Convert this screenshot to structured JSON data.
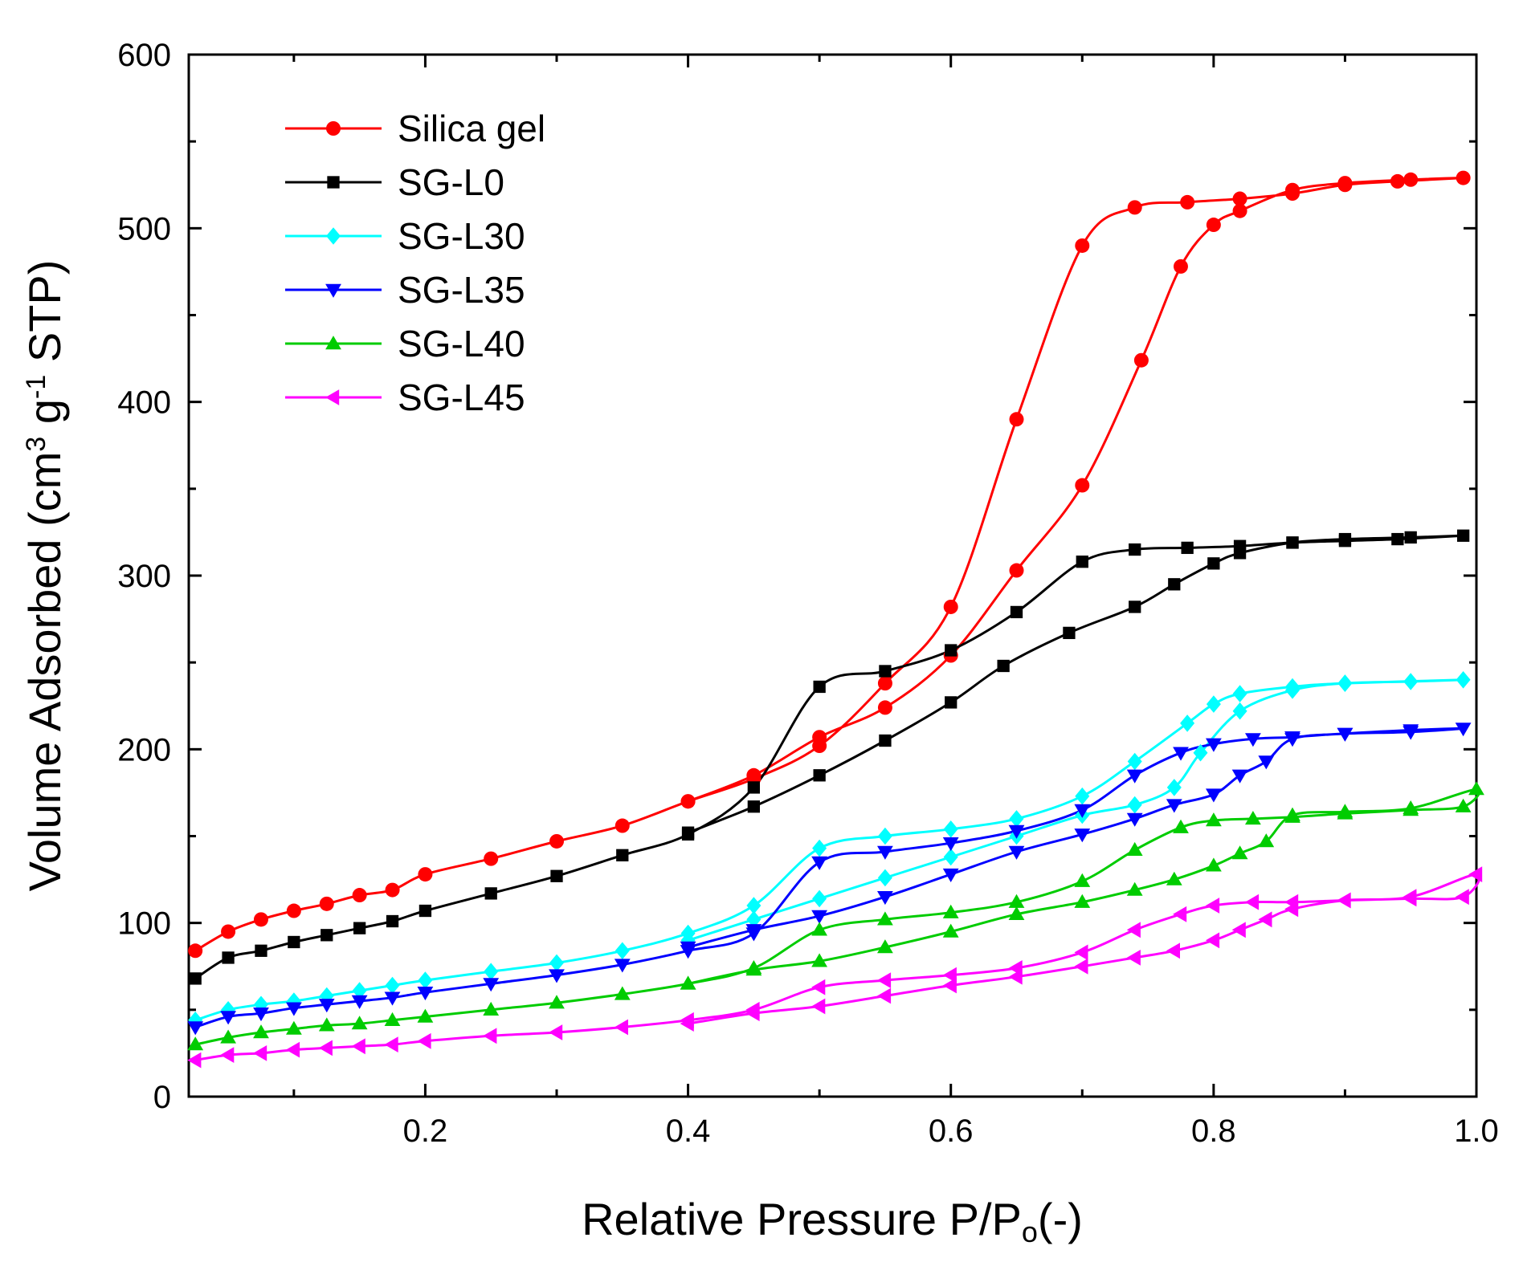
{
  "chart_data": {
    "type": "line",
    "title": "",
    "xlabel": "Relative Pressure P/P",
    "xlabel_sub": "o",
    "xlabel_suffix": "(-)",
    "ylabel_parts": [
      "Volume Adsorbed (cm",
      "3",
      " g",
      "-1",
      " STP)"
    ],
    "xlim": [
      0.02,
      1.0
    ],
    "ylim": [
      0,
      600
    ],
    "xticks": [
      0.2,
      0.4,
      0.6,
      0.8,
      1.0
    ],
    "xtick_labels": [
      "0.2",
      "0.4",
      "0.6",
      "0.8",
      "1.0"
    ],
    "yticks": [
      0,
      100,
      200,
      300,
      400,
      500,
      600
    ],
    "ytick_labels": [
      "0",
      "100",
      "200",
      "300",
      "400",
      "500",
      "600"
    ],
    "legend_position": "top-left",
    "series": [
      {
        "name": "Silica gel",
        "color": "#ff0000",
        "marker": "circle",
        "x": [
          0.025,
          0.05,
          0.075,
          0.1,
          0.125,
          0.15,
          0.175,
          0.2,
          0.25,
          0.3,
          0.35,
          0.4,
          0.45,
          0.5,
          0.55,
          0.6,
          0.65,
          0.7,
          0.74,
          0.78,
          0.82,
          0.86,
          0.9,
          0.94,
          0.99,
          0.95,
          0.9,
          0.86,
          0.82,
          0.8,
          0.775,
          0.745,
          0.7,
          0.65,
          0.6,
          0.55,
          0.5,
          0.45,
          0.4
        ],
        "y": [
          84,
          95,
          102,
          107,
          111,
          116,
          119,
          128,
          137,
          147,
          156,
          170,
          183,
          202,
          238,
          282,
          390,
          490,
          512,
          515,
          517,
          520,
          525,
          527,
          529,
          528,
          526,
          522,
          510,
          502,
          478,
          424,
          352,
          303,
          254,
          224,
          207,
          185,
          170
        ]
      },
      {
        "name": "SG-L0",
        "color": "#000000",
        "marker": "square",
        "x": [
          0.025,
          0.05,
          0.075,
          0.1,
          0.125,
          0.15,
          0.175,
          0.2,
          0.25,
          0.3,
          0.35,
          0.4,
          0.45,
          0.5,
          0.55,
          0.6,
          0.65,
          0.7,
          0.74,
          0.78,
          0.82,
          0.86,
          0.9,
          0.94,
          0.99,
          0.95,
          0.9,
          0.86,
          0.82,
          0.8,
          0.77,
          0.74,
          0.69,
          0.64,
          0.6,
          0.55,
          0.5,
          0.45,
          0.4
        ],
        "y": [
          68,
          80,
          84,
          89,
          93,
          97,
          101,
          107,
          117,
          127,
          139,
          151,
          178,
          236,
          245,
          257,
          279,
          308,
          315,
          316,
          317,
          319,
          320,
          321,
          323,
          322,
          321,
          319,
          313,
          307,
          295,
          282,
          267,
          248,
          227,
          205,
          185,
          167,
          152
        ]
      },
      {
        "name": "SG-L30",
        "color": "#00ffff",
        "marker": "diamond",
        "x": [
          0.025,
          0.05,
          0.075,
          0.1,
          0.125,
          0.15,
          0.175,
          0.2,
          0.25,
          0.3,
          0.35,
          0.4,
          0.45,
          0.5,
          0.55,
          0.6,
          0.65,
          0.7,
          0.74,
          0.78,
          0.8,
          0.82,
          0.86,
          0.9,
          0.99,
          0.95,
          0.9,
          0.86,
          0.82,
          0.79,
          0.77,
          0.74,
          0.7,
          0.65,
          0.6,
          0.55,
          0.5,
          0.45,
          0.4
        ],
        "y": [
          44,
          50,
          53,
          55,
          58,
          61,
          64,
          67,
          72,
          77,
          84,
          94,
          110,
          143,
          150,
          154,
          160,
          173,
          193,
          215,
          226,
          232,
          236,
          238,
          240,
          239,
          238,
          234,
          222,
          198,
          178,
          168,
          162,
          150,
          138,
          126,
          114,
          102,
          90
        ]
      },
      {
        "name": "SG-L35",
        "color": "#0000ff",
        "marker": "triangle-down",
        "x": [
          0.025,
          0.05,
          0.075,
          0.1,
          0.125,
          0.15,
          0.175,
          0.2,
          0.25,
          0.3,
          0.35,
          0.4,
          0.45,
          0.5,
          0.55,
          0.6,
          0.65,
          0.7,
          0.74,
          0.775,
          0.8,
          0.83,
          0.86,
          0.9,
          0.95,
          0.99,
          0.95,
          0.9,
          0.86,
          0.84,
          0.82,
          0.8,
          0.77,
          0.74,
          0.7,
          0.65,
          0.6,
          0.55,
          0.5,
          0.45,
          0.4
        ],
        "y": [
          40,
          46,
          48,
          51,
          53,
          55,
          57,
          60,
          65,
          70,
          76,
          84,
          94,
          135,
          141,
          146,
          153,
          165,
          185,
          198,
          203,
          206,
          207,
          209,
          210,
          212,
          211,
          209,
          206,
          193,
          185,
          174,
          168,
          160,
          151,
          141,
          128,
          115,
          104,
          96,
          86
        ]
      },
      {
        "name": "SG-L40",
        "color": "#00cc00",
        "marker": "triangle-up",
        "x": [
          0.025,
          0.05,
          0.075,
          0.1,
          0.125,
          0.15,
          0.175,
          0.2,
          0.25,
          0.3,
          0.35,
          0.4,
          0.45,
          0.5,
          0.55,
          0.6,
          0.65,
          0.7,
          0.74,
          0.775,
          0.8,
          0.83,
          0.86,
          0.9,
          0.95,
          0.99,
          1.0,
          0.95,
          0.9,
          0.86,
          0.84,
          0.82,
          0.8,
          0.77,
          0.74,
          0.7,
          0.65,
          0.6,
          0.55,
          0.5,
          0.45,
          0.4
        ],
        "y": [
          30,
          34,
          37,
          39,
          41,
          42,
          44,
          46,
          50,
          54,
          59,
          65,
          74,
          96,
          102,
          106,
          112,
          124,
          142,
          155,
          159,
          160,
          161,
          163,
          165,
          167,
          177,
          166,
          164,
          162,
          147,
          140,
          133,
          125,
          119,
          112,
          105,
          95,
          86,
          78,
          73,
          65
        ]
      },
      {
        "name": "SG-L45",
        "color": "#ff00ff",
        "marker": "triangle-left",
        "x": [
          0.025,
          0.05,
          0.075,
          0.1,
          0.125,
          0.15,
          0.175,
          0.2,
          0.25,
          0.3,
          0.35,
          0.4,
          0.45,
          0.5,
          0.55,
          0.6,
          0.65,
          0.7,
          0.74,
          0.775,
          0.8,
          0.83,
          0.86,
          0.9,
          0.95,
          0.99,
          1.0,
          0.95,
          0.9,
          0.86,
          0.84,
          0.82,
          0.8,
          0.77,
          0.74,
          0.7,
          0.65,
          0.6,
          0.55,
          0.5,
          0.45,
          0.4
        ],
        "y": [
          21,
          24,
          25,
          27,
          28,
          29,
          30,
          32,
          35,
          37,
          40,
          44,
          50,
          63,
          67,
          70,
          74,
          83,
          96,
          105,
          110,
          112,
          112,
          113,
          114,
          115,
          128,
          115,
          113,
          108,
          102,
          96,
          90,
          84,
          80,
          75,
          69,
          64,
          58,
          52,
          48,
          42
        ]
      }
    ]
  }
}
